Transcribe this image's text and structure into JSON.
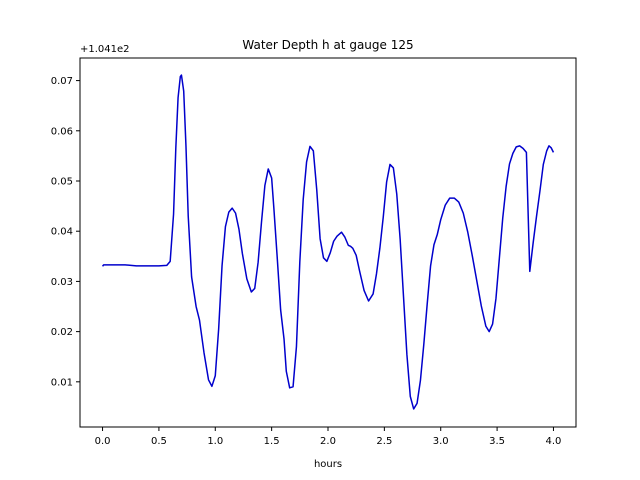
{
  "chart_data": {
    "type": "line",
    "title": "Water Depth h at gauge 125",
    "xlabel": "hours",
    "ylabel": "",
    "offset_label": "+1.041e2",
    "xlim": [
      -0.2,
      4.2
    ],
    "ylim": [
      0.001,
      0.0745
    ],
    "x_ticks": [
      0.0,
      0.5,
      1.0,
      1.5,
      2.0,
      2.5,
      3.0,
      3.5,
      4.0
    ],
    "x_tick_labels": [
      "0.0",
      "0.5",
      "1.0",
      "1.5",
      "2.0",
      "2.5",
      "3.0",
      "3.5",
      "4.0"
    ],
    "y_ticks": [
      0.01,
      0.02,
      0.03,
      0.04,
      0.05,
      0.06,
      0.07
    ],
    "y_tick_labels": [
      "0.01",
      "0.02",
      "0.03",
      "0.04",
      "0.05",
      "0.06",
      "0.07"
    ],
    "grid": false,
    "series": [
      {
        "color": "#0000cc",
        "x": [
          0.0,
          0.01,
          0.1,
          0.2,
          0.3,
          0.4,
          0.5,
          0.57,
          0.6,
          0.63,
          0.65,
          0.67,
          0.69,
          0.7,
          0.72,
          0.74,
          0.76,
          0.79,
          0.83,
          0.86,
          0.9,
          0.94,
          0.97,
          1.0,
          1.03,
          1.06,
          1.09,
          1.12,
          1.15,
          1.18,
          1.21,
          1.24,
          1.28,
          1.32,
          1.35,
          1.38,
          1.41,
          1.44,
          1.47,
          1.5,
          1.52,
          1.55,
          1.58,
          1.61,
          1.63,
          1.66,
          1.69,
          1.72,
          1.75,
          1.78,
          1.81,
          1.84,
          1.87,
          1.9,
          1.93,
          1.96,
          1.99,
          2.02,
          2.05,
          2.08,
          2.12,
          2.15,
          2.18,
          2.2,
          2.22,
          2.25,
          2.28,
          2.32,
          2.36,
          2.4,
          2.43,
          2.46,
          2.49,
          2.52,
          2.55,
          2.58,
          2.61,
          2.64,
          2.67,
          2.7,
          2.73,
          2.76,
          2.79,
          2.82,
          2.85,
          2.88,
          2.91,
          2.94,
          2.97,
          3.0,
          3.04,
          3.08,
          3.12,
          3.16,
          3.2,
          3.24,
          3.28,
          3.32,
          3.36,
          3.4,
          3.43,
          3.46,
          3.49,
          3.52,
          3.55,
          3.58,
          3.61,
          3.64,
          3.67,
          3.7,
          3.73,
          3.76,
          3.79,
          3.82,
          3.85,
          3.88,
          3.91,
          3.94,
          3.96,
          3.98,
          4.0
        ],
        "y": [
          0.033,
          0.0333,
          0.0333,
          0.0333,
          0.0331,
          0.0331,
          0.0331,
          0.0332,
          0.034,
          0.0434,
          0.0566,
          0.0666,
          0.0708,
          0.0711,
          0.0679,
          0.057,
          0.043,
          0.0309,
          0.025,
          0.0223,
          0.0158,
          0.0104,
          0.0091,
          0.0112,
          0.0205,
          0.0331,
          0.0409,
          0.0438,
          0.0446,
          0.0436,
          0.0404,
          0.0356,
          0.0305,
          0.0279,
          0.0286,
          0.0338,
          0.0418,
          0.0491,
          0.0524,
          0.0506,
          0.0445,
          0.0346,
          0.0243,
          0.0185,
          0.0121,
          0.0088,
          0.009,
          0.017,
          0.0339,
          0.0463,
          0.0538,
          0.0569,
          0.056,
          0.0483,
          0.0385,
          0.0347,
          0.034,
          0.0357,
          0.038,
          0.039,
          0.0398,
          0.0388,
          0.0372,
          0.037,
          0.0366,
          0.0352,
          0.0321,
          0.0282,
          0.0261,
          0.0275,
          0.0315,
          0.0366,
          0.0428,
          0.0498,
          0.0533,
          0.0526,
          0.0474,
          0.0384,
          0.0269,
          0.0154,
          0.0071,
          0.0046,
          0.0057,
          0.0103,
          0.0175,
          0.0255,
          0.0331,
          0.0373,
          0.0394,
          0.0423,
          0.0452,
          0.0466,
          0.0466,
          0.0458,
          0.0436,
          0.0398,
          0.0351,
          0.0301,
          0.0251,
          0.0211,
          0.02,
          0.0215,
          0.0266,
          0.0346,
          0.0426,
          0.0489,
          0.0534,
          0.0555,
          0.0568,
          0.057,
          0.0565,
          0.0557,
          0.032,
          0.0377,
          0.043,
          0.048,
          0.0533,
          0.056,
          0.057,
          0.0566,
          0.0557
        ]
      }
    ]
  }
}
